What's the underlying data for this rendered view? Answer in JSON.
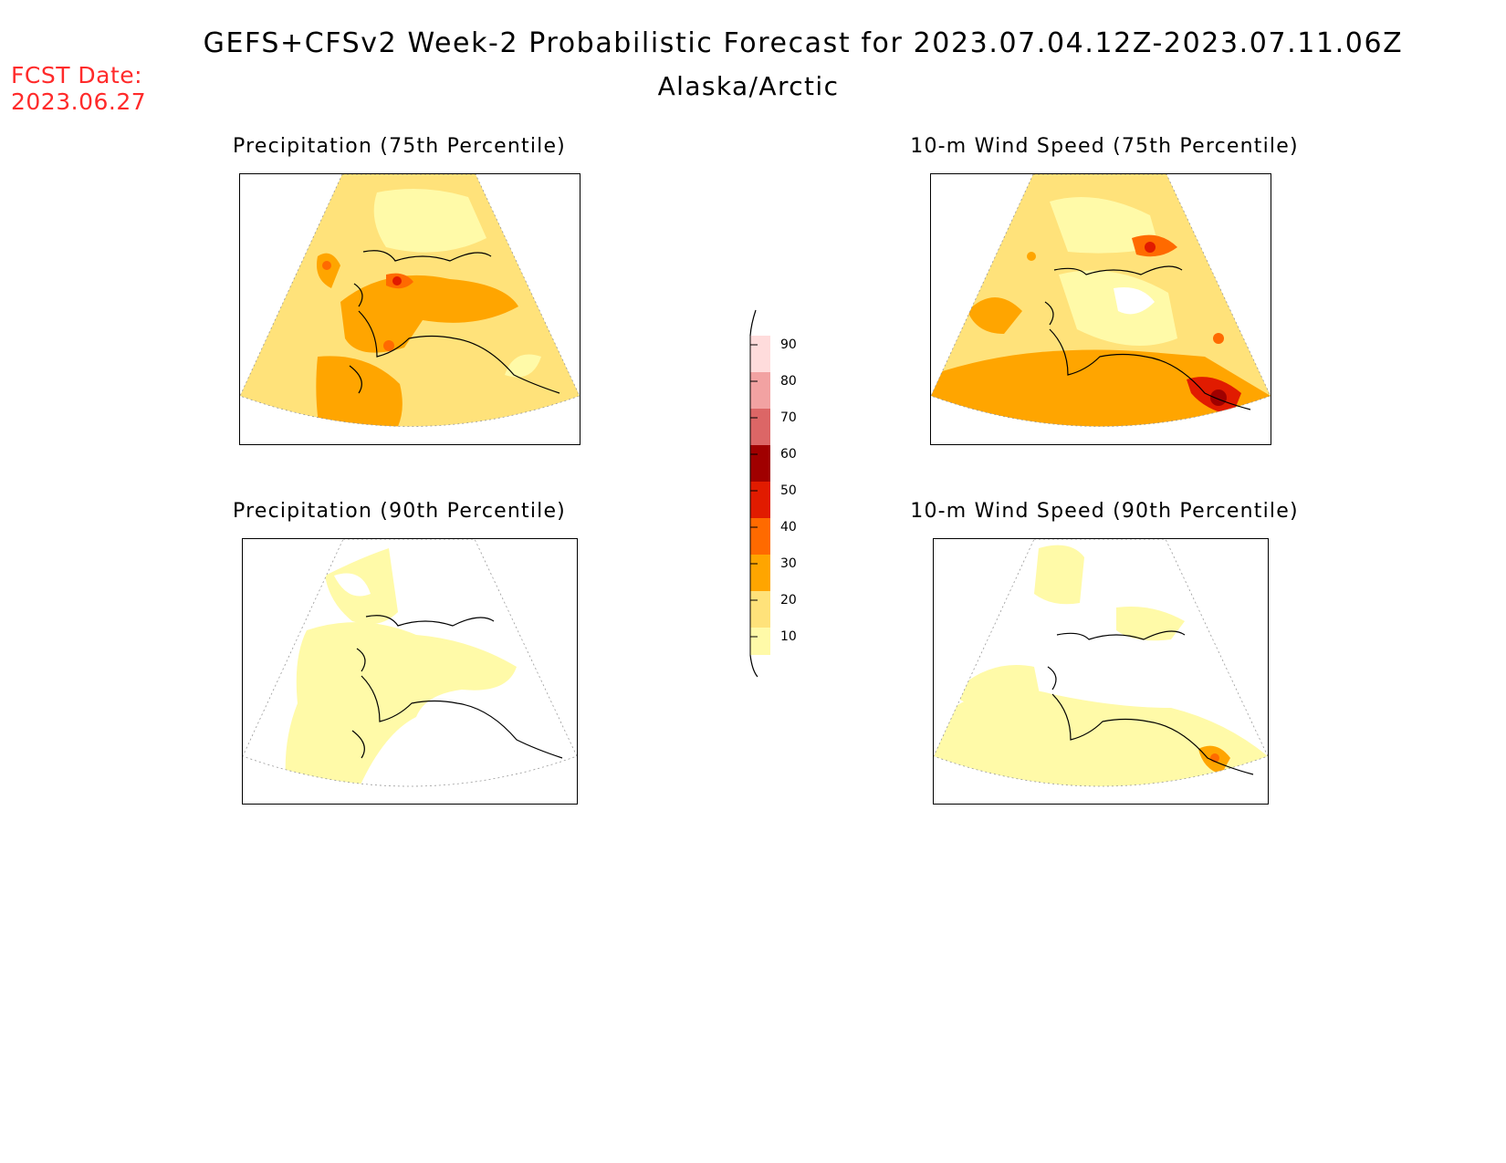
{
  "header": {
    "title": "GEFS+CFSv2 Week-2 Probabilistic Forecast for 2023.07.04.12Z-2023.07.11.06Z",
    "region": "Alaska/Arctic",
    "fcst_label": "FCST Date:",
    "fcst_date": "2023.06.27",
    "fcst_color": "#ff2a2a"
  },
  "panels": [
    {
      "title": "Precipitation (75th Percentile)"
    },
    {
      "title": "10-m Wind Speed (75th Percentile)"
    },
    {
      "title": "Precipitation (90th Percentile)"
    },
    {
      "title": "10-m Wind Speed (90th Percentile)"
    }
  ],
  "colorbar": {
    "ticks": [
      "90",
      "80",
      "70",
      "60",
      "50",
      "40",
      "30",
      "20",
      "10"
    ],
    "colors": {
      "10-20": "#fffaa8",
      "20-30": "#ffe27a",
      "30-40": "#ffa500",
      "40-50": "#ff6a00",
      "50-60": "#e11b00",
      "60-70": "#a00000",
      "70-80": "#dc6666",
      "80-90": "#f2a2a2",
      "90-100": "#ffdcdc"
    }
  }
}
